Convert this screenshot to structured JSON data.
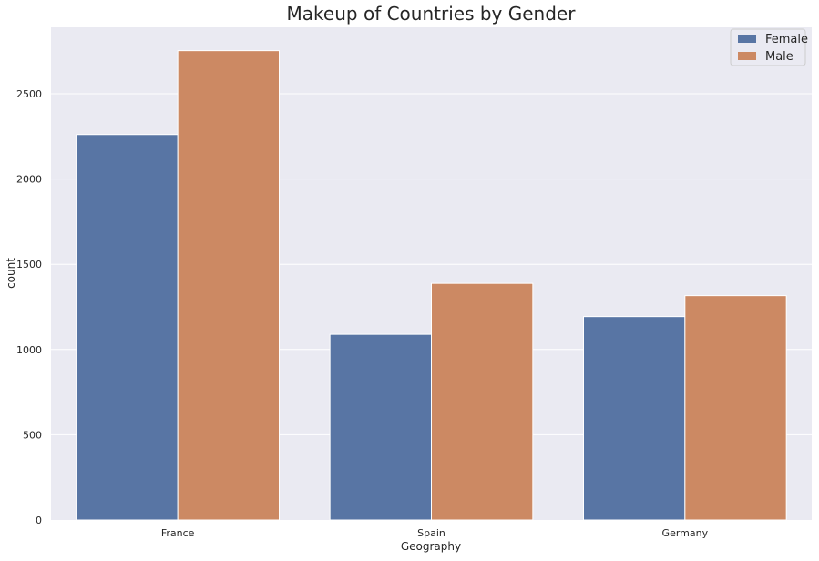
{
  "chart_data": {
    "type": "bar",
    "title": "Makeup of Countries by Gender",
    "xlabel": "Geography",
    "ylabel": "count",
    "categories": [
      "France",
      "Spain",
      "Germany"
    ],
    "series": [
      {
        "name": "Female",
        "values": [
          2261,
          1089,
          1193
        ],
        "color": "#5875a4"
      },
      {
        "name": "Male",
        "values": [
          2753,
          1388,
          1316
        ],
        "color": "#cc8963"
      }
    ],
    "yticks": [
      0,
      500,
      1000,
      1500,
      2000,
      2500
    ],
    "ylim": [
      0,
      2890
    ],
    "grid": true,
    "legend_position": "top-right",
    "background_color": "#eaeaf2"
  }
}
